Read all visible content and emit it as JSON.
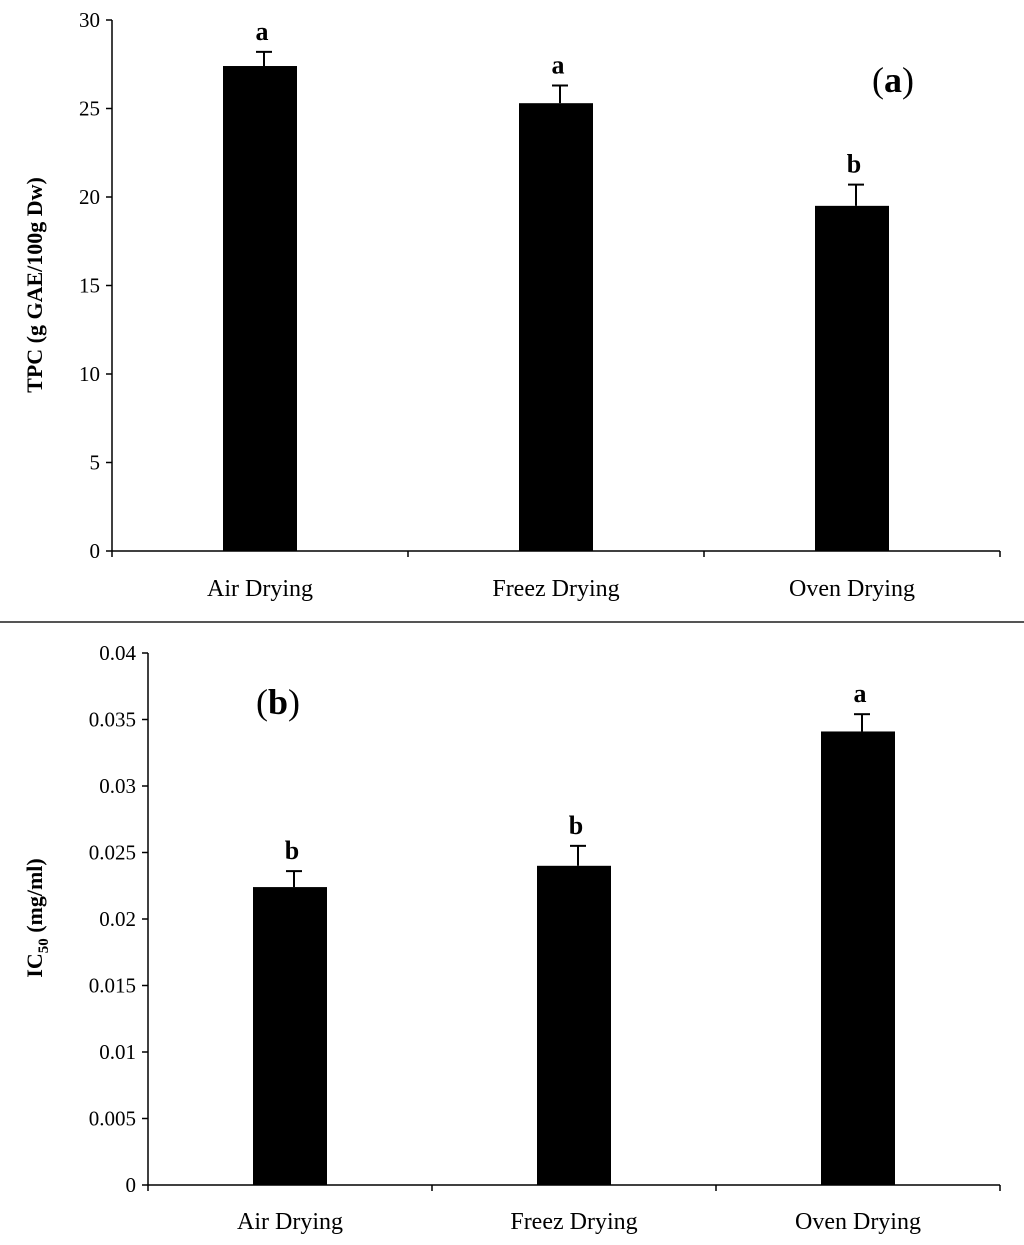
{
  "chart_data": [
    {
      "type": "bar",
      "panel_label_letter": "a",
      "categories": [
        "Air Drying",
        "Freez Drying",
        "Oven Drying"
      ],
      "values": [
        27.4,
        25.3,
        19.5
      ],
      "errors": [
        0.8,
        1.0,
        1.2
      ],
      "significance": [
        "a",
        "a",
        "b"
      ],
      "ylabel": "TPC (g GAE/100g  Dw)",
      "ylim": [
        0,
        30
      ],
      "yticks": [
        0,
        5,
        10,
        15,
        20,
        25,
        30
      ],
      "ytick_labels": [
        "0",
        "5",
        "10",
        "15",
        "20",
        "25",
        "30"
      ],
      "bar_color": "#000000",
      "grid": false
    },
    {
      "type": "bar",
      "panel_label_letter": "b",
      "categories": [
        "Air Drying",
        "Freez Drying",
        "Oven Drying"
      ],
      "values": [
        0.0224,
        0.024,
        0.0341
      ],
      "errors": [
        0.0012,
        0.0015,
        0.0013
      ],
      "significance": [
        "b",
        "b",
        "a"
      ],
      "ylabel_main": "IC",
      "ylabel_sub": "50",
      "ylabel_units": " (mg/ml)",
      "ylim": [
        0,
        0.04
      ],
      "yticks": [
        0,
        0.005,
        0.01,
        0.015,
        0.02,
        0.025,
        0.03,
        0.035,
        0.04
      ],
      "ytick_labels": [
        "0",
        "0.005",
        "0.01",
        "0.015",
        "0.02",
        "0.025",
        "0.03",
        "0.035",
        "0.04"
      ],
      "bar_color": "#000000",
      "grid": false
    }
  ]
}
